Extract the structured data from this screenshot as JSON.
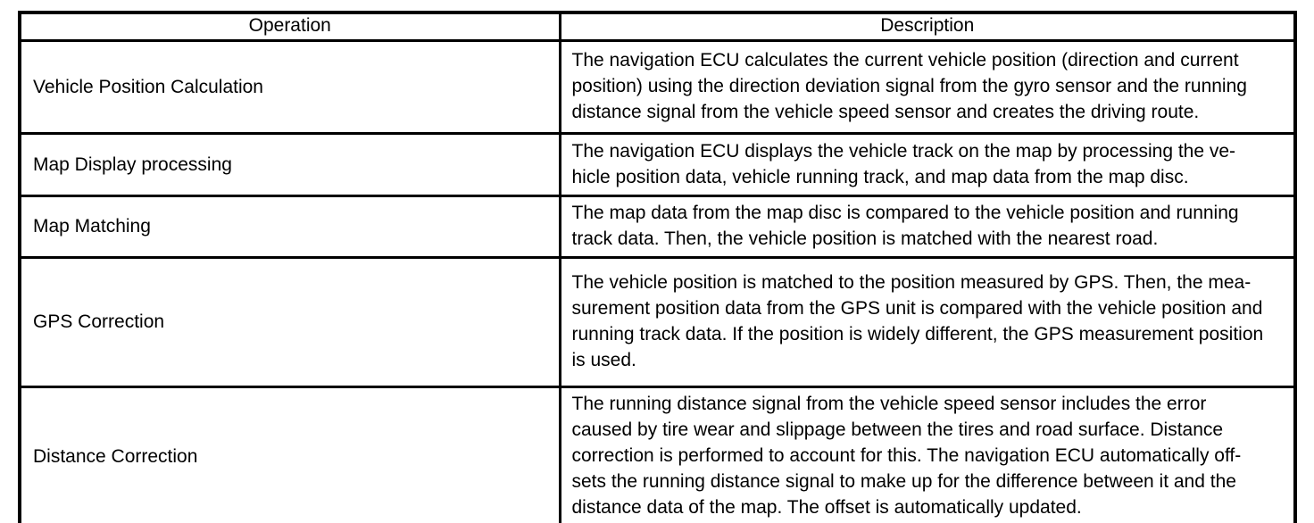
{
  "colors": {
    "background": "#ffffff",
    "border": "#000000",
    "text": "#000000"
  },
  "table": {
    "headers": [
      "Operation",
      "Description"
    ],
    "rows": [
      {
        "operation": "Vehicle Position Calculation",
        "description_lines": [
          "The navigation ECU calculates the current vehicle position (direction and current",
          "position) using the direction deviation signal from the gyro sensor and the running",
          "distance signal from the vehicle speed sensor and creates the driving route."
        ]
      },
      {
        "operation": "Map Display processing",
        "description_lines": [
          "The navigation ECU displays the vehicle track on the map by processing the ve-",
          "hicle position data, vehicle running track, and map data from the map disc."
        ]
      },
      {
        "operation": "Map Matching",
        "description_lines": [
          "The map data from the map disc is compared to the vehicle position and running",
          "track data. Then, the vehicle position is matched with the nearest road."
        ]
      },
      {
        "operation": "GPS Correction",
        "description_lines": [
          "The vehicle position is matched to the position measured by GPS. Then, the mea-",
          "surement position data from the GPS unit is compared with the vehicle position and",
          "running track data. If the position is widely different, the GPS measurement position",
          "is used."
        ]
      },
      {
        "operation": "Distance Correction",
        "description_lines": [
          "The running distance signal from the vehicle speed sensor includes the error",
          "caused by tire wear and slippage between the tires and road surface. Distance",
          "correction is performed to account for this. The navigation ECU automatically off-",
          "sets the running distance signal to make up for the difference between it and the",
          "distance data of the map. The offset is automatically updated."
        ]
      }
    ]
  }
}
